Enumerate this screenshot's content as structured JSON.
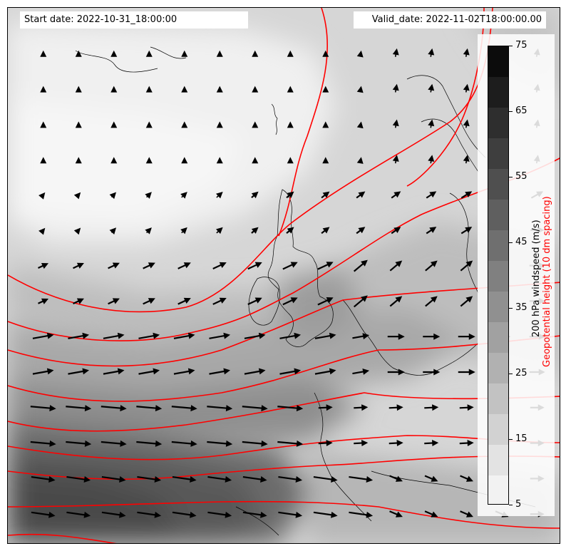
{
  "header": {
    "start_date": "Start date: 2022-10-31_18:00:00",
    "valid_date": "Valid_date: 2022-11-02T18:00:00.00"
  },
  "colorbar": {
    "tick_labels": [
      "5",
      "15",
      "25",
      "35",
      "45",
      "55",
      "65",
      "75"
    ],
    "levels": [
      5,
      10,
      15,
      20,
      25,
      30,
      35,
      40,
      45,
      50,
      55,
      60,
      65,
      70,
      75
    ],
    "colors": [
      "#f2f2f2",
      "#e3e3e3",
      "#d2d2d2",
      "#c2c2c2",
      "#b1b1b1",
      "#a1a1a1",
      "#909090",
      "#808080",
      "#6f6f6f",
      "#5f5f5f",
      "#4f4f4f",
      "#3e3e3e",
      "#2e2e2e",
      "#1d1d1d",
      "#0c0c0c"
    ],
    "label_windspeed": "200 hPa windspeed (m/s)",
    "label_geopotential": "Geopotential height (10 dm spacing)",
    "label_colors": {
      "windspeed": "#000000",
      "geopotential": "#ff0000"
    }
  },
  "map": {
    "contour_color": "#ff0000",
    "coastline_color": "#000000",
    "wind_vector_color": "#000000"
  }
}
